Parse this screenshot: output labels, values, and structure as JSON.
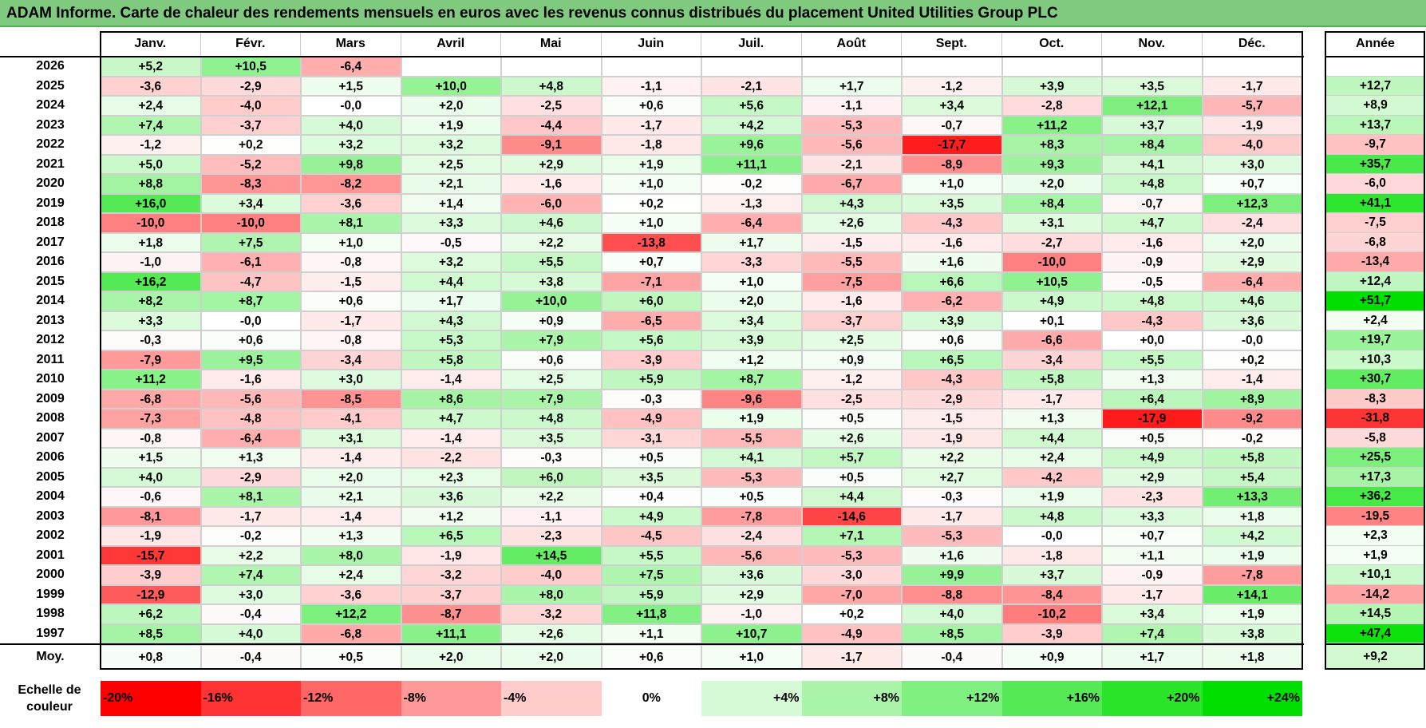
{
  "title": "ADAM Informe. Carte de chaleur des rendements mensuels en euros avec les revenus connus distribués du placement United Utilities Group PLC",
  "colors": {
    "title_bg": "#7fca7f",
    "negative_max": "#ff0000",
    "positive_max": "#00e000",
    "neutral": "#ffffff"
  },
  "chart_data": {
    "type": "heatmap",
    "title": "ADAM Informe. Carte de chaleur des rendements mensuels en euros avec les revenus connus distribués du placement United Utilities Group PLC",
    "months": [
      "Janv.",
      "Févr.",
      "Mars",
      "Avril",
      "Mai",
      "Juin",
      "Juil.",
      "Août",
      "Sept.",
      "Oct.",
      "Nov.",
      "Déc."
    ],
    "year_header": "Année",
    "rows": [
      {
        "year": "2026",
        "values": [
          "+5,2",
          "+10,5",
          "-6,4",
          "",
          "",
          "",
          "",
          "",
          "",
          "",
          "",
          ""
        ],
        "annual": ""
      },
      {
        "year": "2025",
        "values": [
          "-3,6",
          "-2,9",
          "+1,5",
          "+10,0",
          "+4,8",
          "-1,1",
          "-2,1",
          "+1,7",
          "-1,2",
          "+3,9",
          "+3,5",
          "-1,7"
        ],
        "annual": "+12,7"
      },
      {
        "year": "2024",
        "values": [
          "+2,4",
          "-4,0",
          "-0,0",
          "+2,0",
          "-2,5",
          "+0,6",
          "+5,6",
          "-1,1",
          "+3,4",
          "-2,8",
          "+12,1",
          "-5,7"
        ],
        "annual": "+8,9"
      },
      {
        "year": "2023",
        "values": [
          "+7,4",
          "-3,7",
          "+4,0",
          "+1,9",
          "-4,4",
          "-1,7",
          "+4,2",
          "-5,3",
          "-0,7",
          "+11,2",
          "+3,7",
          "-1,9"
        ],
        "annual": "+13,7"
      },
      {
        "year": "2022",
        "values": [
          "-1,2",
          "+0,2",
          "+3,2",
          "+3,2",
          "-9,1",
          "-1,8",
          "+9,6",
          "-5,6",
          "-17,7",
          "+8,3",
          "+8,4",
          "-4,0"
        ],
        "annual": "-9,7"
      },
      {
        "year": "2021",
        "values": [
          "+5,0",
          "-5,2",
          "+9,8",
          "+2,5",
          "+2,9",
          "+1,9",
          "+11,1",
          "-2,1",
          "-8,9",
          "+9,3",
          "+4,1",
          "+3,0"
        ],
        "annual": "+35,7"
      },
      {
        "year": "2020",
        "values": [
          "+8,8",
          "-8,3",
          "-8,2",
          "+2,1",
          "-1,6",
          "+1,0",
          "-0,2",
          "-6,7",
          "+1,0",
          "+2,0",
          "+4,8",
          "+0,7"
        ],
        "annual": "-6,0"
      },
      {
        "year": "2019",
        "values": [
          "+16,0",
          "+3,4",
          "-3,6",
          "+1,4",
          "-6,0",
          "+0,2",
          "-1,3",
          "+4,3",
          "+3,5",
          "+8,4",
          "-0,7",
          "+12,3"
        ],
        "annual": "+41,1"
      },
      {
        "year": "2018",
        "values": [
          "-10,0",
          "-10,0",
          "+8,1",
          "+3,3",
          "+4,6",
          "+1,0",
          "-6,4",
          "+2,6",
          "-4,3",
          "+3,1",
          "+4,7",
          "-2,4"
        ],
        "annual": "-7,5"
      },
      {
        "year": "2017",
        "values": [
          "+1,8",
          "+7,5",
          "+1,0",
          "-0,5",
          "+2,2",
          "-13,8",
          "+1,7",
          "-1,5",
          "-1,6",
          "-2,7",
          "-1,6",
          "+2,0"
        ],
        "annual": "-6,8"
      },
      {
        "year": "2016",
        "values": [
          "-1,0",
          "-6,1",
          "-0,8",
          "+3,2",
          "+5,5",
          "+0,7",
          "-3,3",
          "-5,5",
          "+1,6",
          "-10,0",
          "-0,9",
          "+2,9"
        ],
        "annual": "-13,4"
      },
      {
        "year": "2015",
        "values": [
          "+16,2",
          "-4,7",
          "-1,5",
          "+4,4",
          "+3,8",
          "-7,1",
          "+1,0",
          "-7,5",
          "+6,6",
          "+10,5",
          "-0,5",
          "-6,4"
        ],
        "annual": "+12,4"
      },
      {
        "year": "2014",
        "values": [
          "+8,2",
          "+8,7",
          "+0,6",
          "+1,7",
          "+10,0",
          "+6,0",
          "+2,0",
          "-1,6",
          "-6,2",
          "+4,9",
          "+4,8",
          "+4,6"
        ],
        "annual": "+51,7"
      },
      {
        "year": "2013",
        "values": [
          "+3,3",
          "-0,0",
          "-1,7",
          "+4,3",
          "+0,9",
          "-6,5",
          "+3,4",
          "-3,7",
          "+3,9",
          "+0,1",
          "-4,3",
          "+3,6"
        ],
        "annual": "+2,4"
      },
      {
        "year": "2012",
        "values": [
          "-0,3",
          "+0,6",
          "-0,8",
          "+5,3",
          "+7,9",
          "+5,6",
          "+3,9",
          "+2,5",
          "+0,6",
          "-6,6",
          "+0,0",
          "-0,0"
        ],
        "annual": "+19,7"
      },
      {
        "year": "2011",
        "values": [
          "-7,9",
          "+9,5",
          "-3,4",
          "+5,8",
          "+0,6",
          "-3,9",
          "+1,2",
          "+0,9",
          "+6,5",
          "-3,4",
          "+5,5",
          "+0,2"
        ],
        "annual": "+10,3"
      },
      {
        "year": "2010",
        "values": [
          "+11,2",
          "-1,6",
          "+3,0",
          "-1,4",
          "+2,5",
          "+5,9",
          "+8,7",
          "-1,2",
          "-4,3",
          "+5,8",
          "+1,3",
          "-1,4"
        ],
        "annual": "+30,7"
      },
      {
        "year": "2009",
        "values": [
          "-6,8",
          "-5,6",
          "-8,5",
          "+8,6",
          "+7,9",
          "-0,3",
          "-9,6",
          "-2,5",
          "-2,9",
          "-1,7",
          "+6,4",
          "+8,9"
        ],
        "annual": "-8,3"
      },
      {
        "year": "2008",
        "values": [
          "-7,3",
          "-4,8",
          "-4,1",
          "+4,7",
          "+4,8",
          "-4,9",
          "+1,9",
          "+0,5",
          "-1,5",
          "+1,3",
          "-17,9",
          "-9,2"
        ],
        "annual": "-31,8"
      },
      {
        "year": "2007",
        "values": [
          "-0,8",
          "-6,4",
          "+3,1",
          "-1,4",
          "+3,5",
          "-3,1",
          "-5,5",
          "+2,6",
          "-1,9",
          "+4,4",
          "+0,5",
          "-0,2"
        ],
        "annual": "-5,8"
      },
      {
        "year": "2006",
        "values": [
          "+1,5",
          "+1,3",
          "-1,4",
          "-2,2",
          "-0,3",
          "+0,5",
          "+4,1",
          "+5,7",
          "+2,2",
          "+2,4",
          "+4,9",
          "+5,8"
        ],
        "annual": "+25,5"
      },
      {
        "year": "2005",
        "values": [
          "+4,0",
          "-2,9",
          "+2,0",
          "+2,3",
          "+6,0",
          "+3,5",
          "-5,3",
          "+0,5",
          "+2,7",
          "-4,2",
          "+2,9",
          "+5,4"
        ],
        "annual": "+17,3"
      },
      {
        "year": "2004",
        "values": [
          "-0,6",
          "+8,1",
          "+2,1",
          "+3,6",
          "+2,2",
          "+0,4",
          "+0,5",
          "+4,4",
          "-0,3",
          "+1,9",
          "-2,3",
          "+13,3"
        ],
        "annual": "+36,2"
      },
      {
        "year": "2003",
        "values": [
          "-8,1",
          "-1,7",
          "-1,4",
          "+1,2",
          "-1,1",
          "+4,9",
          "-7,8",
          "-14,6",
          "-1,7",
          "+4,8",
          "+3,3",
          "+1,8"
        ],
        "annual": "-19,5"
      },
      {
        "year": "2002",
        "values": [
          "-1,9",
          "-0,2",
          "+1,3",
          "+6,5",
          "-2,3",
          "-4,5",
          "-2,4",
          "+7,1",
          "-5,3",
          "-0,0",
          "+0,7",
          "+4,2"
        ],
        "annual": "+2,3"
      },
      {
        "year": "2001",
        "values": [
          "-15,7",
          "+2,2",
          "+8,0",
          "-1,9",
          "+14,5",
          "+5,5",
          "-5,6",
          "-5,3",
          "+1,6",
          "-1,8",
          "+1,1",
          "+1,9"
        ],
        "annual": "+1,9"
      },
      {
        "year": "2000",
        "values": [
          "-3,9",
          "+7,4",
          "+2,4",
          "-3,2",
          "-4,0",
          "+7,5",
          "+3,6",
          "-3,0",
          "+9,9",
          "+3,7",
          "-0,9",
          "-7,8"
        ],
        "annual": "+10,1"
      },
      {
        "year": "1999",
        "values": [
          "-12,9",
          "+3,0",
          "-3,6",
          "-3,7",
          "+8,0",
          "+5,9",
          "+2,9",
          "-7,0",
          "-8,8",
          "-8,4",
          "-1,7",
          "+14,1"
        ],
        "annual": "-14,2"
      },
      {
        "year": "1998",
        "values": [
          "+6,2",
          "-0,4",
          "+12,2",
          "-8,7",
          "-3,2",
          "+11,8",
          "-1,0",
          "+0,2",
          "+4,0",
          "-10,2",
          "+3,4",
          "+1,9"
        ],
        "annual": "+14,5"
      },
      {
        "year": "1997",
        "values": [
          "+8,5",
          "+4,0",
          "-6,8",
          "+11,1",
          "+2,6",
          "+1,1",
          "+10,7",
          "-4,9",
          "+8,5",
          "-3,9",
          "+7,4",
          "+3,8"
        ],
        "annual": "+47,4"
      }
    ],
    "average": {
      "label": "Moy.",
      "values": [
        "+0,8",
        "-0,4",
        "+0,5",
        "+2,0",
        "+2,0",
        "+0,6",
        "+1,0",
        "-1,7",
        "-0,4",
        "+0,9",
        "+1,7",
        "+1,8"
      ],
      "annual": "+9,2"
    },
    "scale": {
      "label": "Echelle de couleur",
      "entries": [
        {
          "label": "-20%",
          "value": -20
        },
        {
          "label": "-16%",
          "value": -16
        },
        {
          "label": "-12%",
          "value": -12
        },
        {
          "label": "-8%",
          "value": -8
        },
        {
          "label": "-4%",
          "value": -4
        },
        {
          "label": "0%",
          "value": 0
        },
        {
          "label": "+4%",
          "value": 4
        },
        {
          "label": "+8%",
          "value": 8
        },
        {
          "label": "+12%",
          "value": 12
        },
        {
          "label": "+16%",
          "value": 16
        },
        {
          "label": "+20%",
          "value": 20
        },
        {
          "label": "+24%",
          "value": 24
        }
      ]
    }
  }
}
